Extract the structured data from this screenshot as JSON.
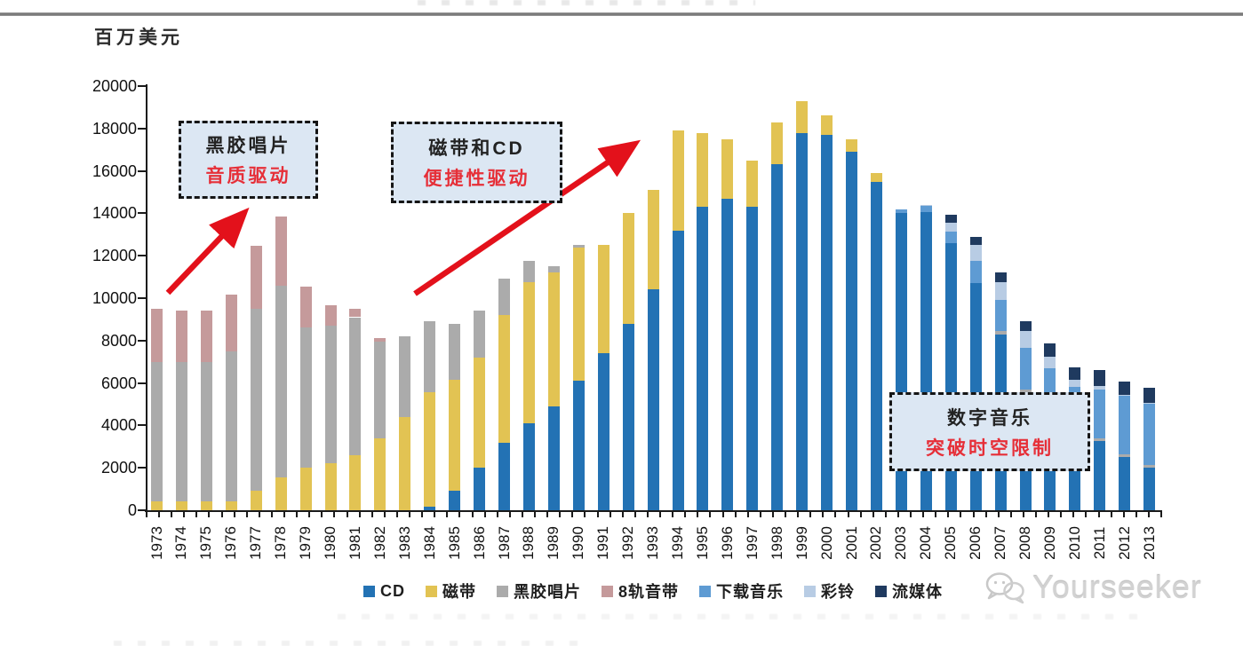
{
  "header": {
    "unit_label": "百万美元"
  },
  "annotations": {
    "vinyl": {
      "line1": "黑胶唱片",
      "line2": "音质驱动"
    },
    "cassette_cd": {
      "line1": "磁带和CD",
      "line2": "便捷性驱动"
    },
    "digital": {
      "line1": "数字音乐",
      "line2": "突破时空限制"
    }
  },
  "watermark": {
    "text": "Yourseeker"
  },
  "colors": {
    "accent_red": "#E3111B",
    "annotation_red_text": "#E62F38",
    "annotation_bg": "#DCE7F3",
    "axis": "#1A1A1A",
    "rule_gray": "#8C8C8C",
    "watermark_gray": "#D2D2D2"
  },
  "chart_data": {
    "type": "bar",
    "stacked": true,
    "title": "",
    "xlabel": "",
    "ylabel": "百万美元",
    "ylim": [
      0,
      20000
    ],
    "ytick_step": 2000,
    "yticks": [
      0,
      2000,
      4000,
      6000,
      8000,
      10000,
      12000,
      14000,
      16000,
      18000,
      20000
    ],
    "grid": false,
    "legend_position": "bottom",
    "categories": [
      "1973",
      "1974",
      "1975",
      "1976",
      "1977",
      "1978",
      "1979",
      "1980",
      "1981",
      "1982",
      "1983",
      "1984",
      "1985",
      "1986",
      "1987",
      "1988",
      "1989",
      "1990",
      "1991",
      "1992",
      "1993",
      "1994",
      "1995",
      "1996",
      "1997",
      "1998",
      "1999",
      "2000",
      "2001",
      "2002",
      "2003",
      "2004",
      "2005",
      "2006",
      "2007",
      "2008",
      "2009",
      "2010",
      "2011",
      "2012",
      "2013"
    ],
    "series": [
      {
        "name": "CD",
        "color": "#2372B4",
        "values": [
          0,
          0,
          0,
          0,
          0,
          0,
          0,
          0,
          0,
          0,
          0,
          150,
          900,
          2000,
          3200,
          4100,
          4900,
          6100,
          7400,
          8800,
          10400,
          13200,
          14300,
          14700,
          14300,
          16300,
          17800,
          17700,
          16900,
          15500,
          14000,
          14050,
          12600,
          10700,
          8300,
          5550,
          4500,
          3900,
          3250,
          2500,
          2000
        ]
      },
      {
        "name": "磁带",
        "color": "#E2C353",
        "values": [
          400,
          400,
          400,
          400,
          900,
          1550,
          2000,
          2200,
          2600,
          3400,
          4400,
          5400,
          5250,
          5200,
          6000,
          6650,
          6300,
          6300,
          5100,
          5200,
          4700,
          4700,
          3500,
          2800,
          2200,
          2000,
          1500,
          900,
          600,
          400,
          0,
          0,
          0,
          0,
          0,
          0,
          0,
          0,
          0,
          0,
          0
        ]
      },
      {
        "name": "黑胶唱片",
        "color": "#ABABAB",
        "values": [
          6600,
          6600,
          6600,
          7100,
          8600,
          9050,
          6600,
          6500,
          6500,
          4550,
          3800,
          3350,
          2650,
          2200,
          1700,
          1000,
          300,
          100,
          0,
          0,
          0,
          0,
          0,
          0,
          0,
          0,
          0,
          0,
          0,
          0,
          0,
          0,
          0,
          0,
          150,
          150,
          100,
          100,
          150,
          130,
          130
        ]
      },
      {
        "name": "8轨音带",
        "color": "#C59A9B",
        "values": [
          2500,
          2400,
          2400,
          2650,
          2950,
          3250,
          1950,
          950,
          400,
          150,
          0,
          0,
          0,
          0,
          0,
          0,
          0,
          0,
          0,
          0,
          0,
          0,
          0,
          0,
          0,
          0,
          0,
          0,
          0,
          0,
          0,
          0,
          0,
          0,
          0,
          0,
          0,
          0,
          0,
          0,
          0
        ]
      },
      {
        "name": "下载音乐",
        "color": "#5E9BD3",
        "values": [
          0,
          0,
          0,
          0,
          0,
          0,
          0,
          0,
          0,
          0,
          0,
          0,
          0,
          0,
          0,
          0,
          0,
          0,
          0,
          0,
          0,
          0,
          0,
          0,
          0,
          0,
          0,
          0,
          0,
          0,
          200,
          300,
          550,
          1050,
          1450,
          1950,
          2100,
          1800,
          2300,
          2750,
          2900
        ]
      },
      {
        "name": "彩铃",
        "color": "#B8CCE4",
        "values": [
          0,
          0,
          0,
          0,
          0,
          0,
          0,
          0,
          0,
          0,
          0,
          0,
          0,
          0,
          0,
          0,
          0,
          0,
          0,
          0,
          0,
          0,
          0,
          0,
          0,
          0,
          0,
          0,
          0,
          0,
          0,
          50,
          420,
          750,
          850,
          800,
          550,
          350,
          150,
          70,
          40
        ]
      },
      {
        "name": "流媒体",
        "color": "#1F3A5F",
        "values": [
          0,
          0,
          0,
          0,
          0,
          0,
          0,
          0,
          0,
          0,
          0,
          0,
          0,
          0,
          0,
          0,
          0,
          0,
          0,
          0,
          0,
          0,
          0,
          0,
          0,
          0,
          0,
          0,
          0,
          0,
          0,
          0,
          370,
          400,
          450,
          450,
          600,
          600,
          750,
          620,
          700
        ]
      }
    ]
  }
}
